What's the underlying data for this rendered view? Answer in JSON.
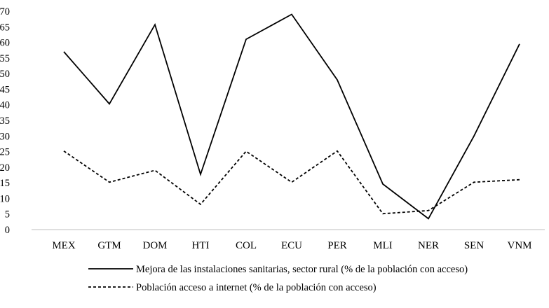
{
  "chart_data": {
    "type": "line",
    "categories": [
      "MEX",
      "GTM",
      "DOM",
      "HTI",
      "COL",
      "ECU",
      "PER",
      "MLI",
      "NER",
      "SEN",
      "VNM"
    ],
    "series": [
      {
        "name": "Mejora de las instalaciones sanitarias, sector rural (% de la población con acceso)",
        "values": [
          57,
          40.3,
          65.7,
          17.7,
          61,
          69,
          48,
          14.6,
          3.5,
          30,
          59.5
        ],
        "color": "#000000",
        "line_style": "solid"
      },
      {
        "name": "Población acceso a internet (% de la población con acceso)",
        "values": [
          25.2,
          15.2,
          19,
          8.1,
          25.1,
          15.2,
          25.2,
          5.1,
          6.1,
          15.2,
          16
        ],
        "color": "#000000",
        "line_style": "dashed"
      }
    ],
    "y_ticks": [
      "0",
      "5",
      "10",
      "15",
      "20",
      "25",
      "30",
      "35",
      "40",
      "45",
      "50",
      "55",
      "60",
      "65",
      "70"
    ],
    "ylim": [
      0,
      70
    ],
    "grid": false,
    "legend_position": "bottom"
  }
}
